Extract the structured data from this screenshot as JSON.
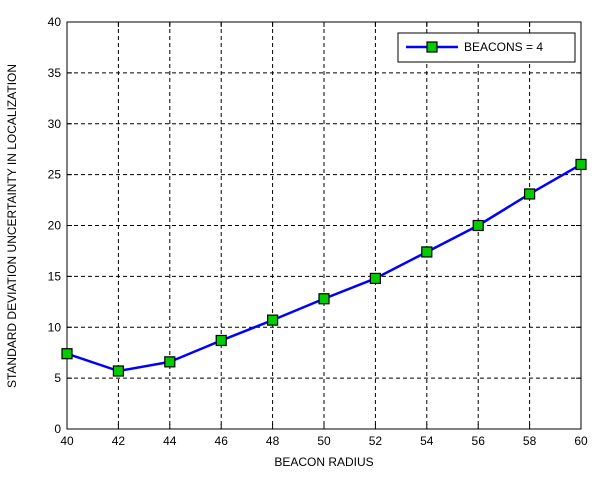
{
  "chart_data": {
    "type": "line",
    "xlabel": "BEACON RADIUS",
    "ylabel": "STANDARD DEVIATION UNCERTAINTY IN LOCALIZATION",
    "xlim": [
      40,
      60
    ],
    "ylim": [
      0,
      40
    ],
    "x_ticks": [
      "40",
      "42",
      "44",
      "46",
      "48",
      "50",
      "52",
      "54",
      "56",
      "58",
      "60"
    ],
    "y_ticks": [
      "0",
      "5",
      "10",
      "15",
      "20",
      "25",
      "30",
      "35",
      "40"
    ],
    "grid": true,
    "legend_position": "top-right",
    "x": [
      40,
      42,
      44,
      46,
      48,
      50,
      52,
      54,
      56,
      58,
      60
    ],
    "series": [
      {
        "name": "BEACONS = 4",
        "values": [
          7.4,
          5.7,
          6.6,
          8.7,
          10.7,
          12.8,
          14.8,
          17.4,
          20.0,
          23.1,
          26.0
        ],
        "line_color": "#0000ff",
        "marker_color": "#00cc00",
        "marker": "square"
      }
    ]
  }
}
